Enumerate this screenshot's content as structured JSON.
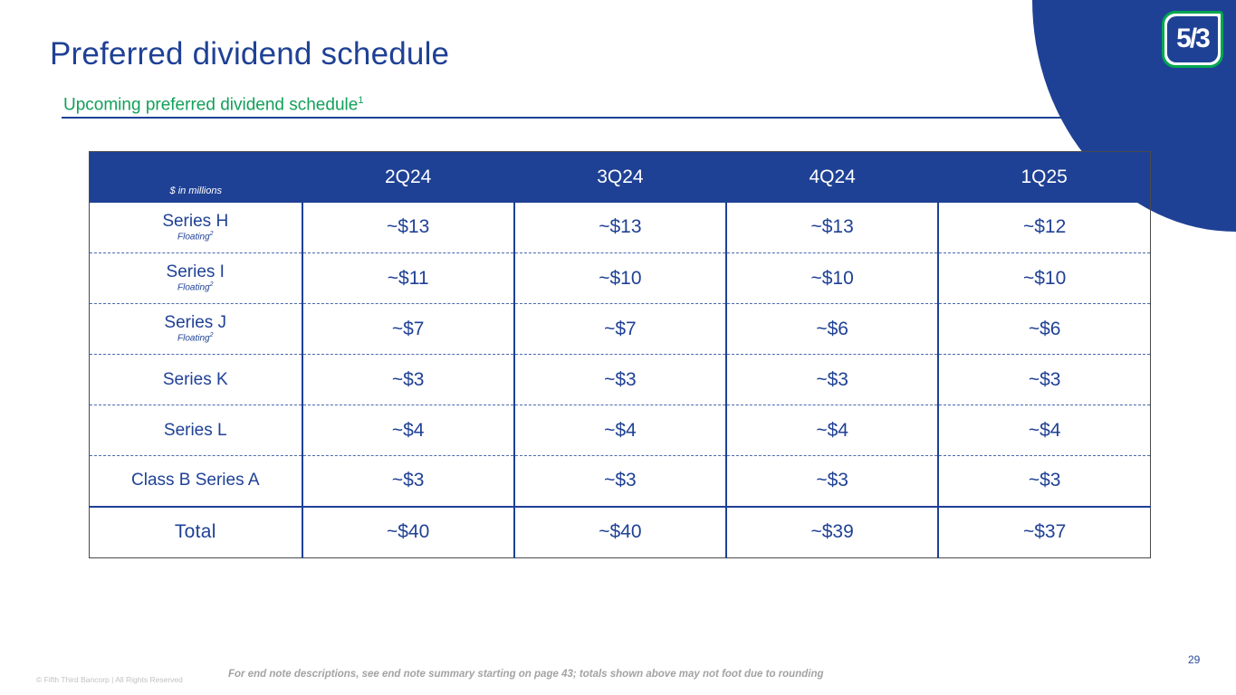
{
  "slide": {
    "title": "Preferred dividend schedule",
    "subtitle": "Upcoming preferred dividend schedule",
    "subtitle_superscript": "1",
    "page_number": "29",
    "copyright": "© Fifth Third Bancorp | All Rights Reserved",
    "endnote": "For end note descriptions, see end note summary starting on page 43; totals shown above may not foot due to rounding",
    "logo_text": "5/3"
  },
  "colors": {
    "brand_blue": "#1f4195",
    "brand_green": "#12a05a",
    "logo_green": "#00a651",
    "header_text": "#ffffff",
    "footer_gray": "#a3a3a3"
  },
  "table": {
    "unit_label": "$ in millions",
    "columns": [
      "2Q24",
      "3Q24",
      "4Q24",
      "1Q25"
    ],
    "rows": [
      {
        "label": "Series H",
        "sublabel": "Floating",
        "sublabel_sup": "2",
        "values": [
          "~$13",
          "~$13",
          "~$13",
          "~$12"
        ]
      },
      {
        "label": "Series I",
        "sublabel": "Floating",
        "sublabel_sup": "2",
        "values": [
          "~$11",
          "~$10",
          "~$10",
          "~$10"
        ]
      },
      {
        "label": "Series J",
        "sublabel": "Floating",
        "sublabel_sup": "2",
        "values": [
          "~$7",
          "~$7",
          "~$6",
          "~$6"
        ]
      },
      {
        "label": "Series K",
        "values": [
          "~$3",
          "~$3",
          "~$3",
          "~$3"
        ]
      },
      {
        "label": "Series L",
        "values": [
          "~$4",
          "~$4",
          "~$4",
          "~$4"
        ]
      },
      {
        "label": "Class B Series A",
        "values": [
          "~$3",
          "~$3",
          "~$3",
          "~$3"
        ]
      }
    ],
    "total_row": {
      "label": "Total",
      "values": [
        "~$40",
        "~$40",
        "~$39",
        "~$37"
      ]
    }
  }
}
